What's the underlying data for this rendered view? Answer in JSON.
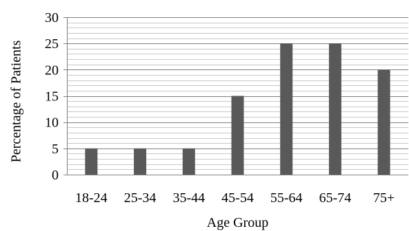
{
  "chart_data": {
    "type": "bar",
    "categories": [
      "18-24",
      "25-34",
      "35-44",
      "45-54",
      "55-64",
      "65-74",
      "75+"
    ],
    "values": [
      5,
      5,
      5,
      15,
      25,
      25,
      20
    ],
    "xlabel": "Age Group",
    "ylabel": "Percentage of Patients",
    "ylim": [
      0,
      30
    ],
    "yticks": [
      "0",
      "5",
      "10",
      "15",
      "20",
      "25",
      "30"
    ],
    "grid": true,
    "minor_grid": true,
    "legend": "none",
    "bar_color": "#595959",
    "major_grid_color": "#7f7f7f",
    "minor_grid_color": "#c8c8c8"
  }
}
